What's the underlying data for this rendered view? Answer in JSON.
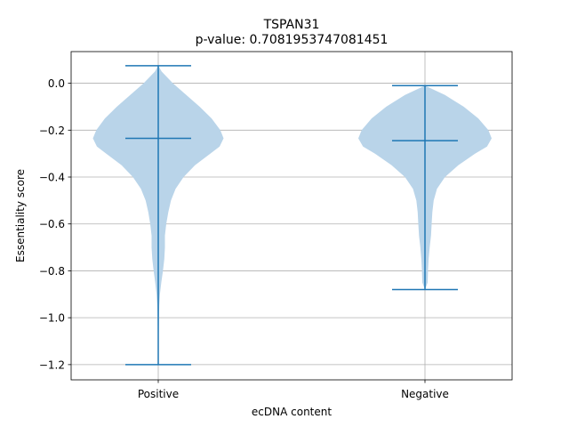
{
  "chart_data": {
    "type": "violin",
    "title": "TSPAN31",
    "subtitle": "p-value: 0.7081953747081451",
    "xlabel": "ecDNA content",
    "ylabel": "Essentiality score",
    "categories": [
      "Positive",
      "Negative"
    ],
    "ylim": [
      -1.265,
      0.135
    ],
    "yticks": [
      0.0,
      -0.2,
      -0.4,
      -0.6,
      -0.8,
      -1.0,
      -1.2
    ],
    "ytick_labels": [
      "0.0",
      "−0.2",
      "−0.4",
      "−0.6",
      "−0.8",
      "−1.0",
      "−1.2"
    ],
    "grid": true,
    "color": "#1f77b4",
    "fill_color": "#b9d4e9",
    "series": [
      {
        "category": "Positive",
        "max": 0.075,
        "median": -0.235,
        "min": -1.2,
        "density": [
          [
            0.075,
            0.0
          ],
          [
            0.05,
            0.05
          ],
          [
            0.0,
            0.22
          ],
          [
            -0.05,
            0.42
          ],
          [
            -0.1,
            0.62
          ],
          [
            -0.15,
            0.8
          ],
          [
            -0.2,
            0.93
          ],
          [
            -0.235,
            0.98
          ],
          [
            -0.27,
            0.92
          ],
          [
            -0.3,
            0.78
          ],
          [
            -0.35,
            0.55
          ],
          [
            -0.4,
            0.38
          ],
          [
            -0.45,
            0.26
          ],
          [
            -0.5,
            0.19
          ],
          [
            -0.55,
            0.15
          ],
          [
            -0.6,
            0.12
          ],
          [
            -0.65,
            0.1
          ],
          [
            -0.7,
            0.1
          ],
          [
            -0.75,
            0.09
          ],
          [
            -0.8,
            0.07
          ],
          [
            -0.85,
            0.045
          ],
          [
            -0.9,
            0.025
          ],
          [
            -0.95,
            0.015
          ],
          [
            -1.0,
            0.01
          ],
          [
            -1.1,
            0.006
          ],
          [
            -1.2,
            0.0
          ]
        ]
      },
      {
        "category": "Negative",
        "max": -0.01,
        "median": -0.245,
        "min": -0.88,
        "density": [
          [
            -0.01,
            0.0
          ],
          [
            -0.05,
            0.3
          ],
          [
            -0.1,
            0.58
          ],
          [
            -0.15,
            0.8
          ],
          [
            -0.2,
            0.95
          ],
          [
            -0.235,
            1.0
          ],
          [
            -0.27,
            0.93
          ],
          [
            -0.3,
            0.75
          ],
          [
            -0.35,
            0.5
          ],
          [
            -0.4,
            0.3
          ],
          [
            -0.45,
            0.18
          ],
          [
            -0.5,
            0.13
          ],
          [
            -0.55,
            0.11
          ],
          [
            -0.6,
            0.1
          ],
          [
            -0.65,
            0.09
          ],
          [
            -0.7,
            0.07
          ],
          [
            -0.75,
            0.055
          ],
          [
            -0.8,
            0.045
          ],
          [
            -0.85,
            0.04
          ],
          [
            -0.88,
            0.0
          ]
        ]
      }
    ]
  }
}
